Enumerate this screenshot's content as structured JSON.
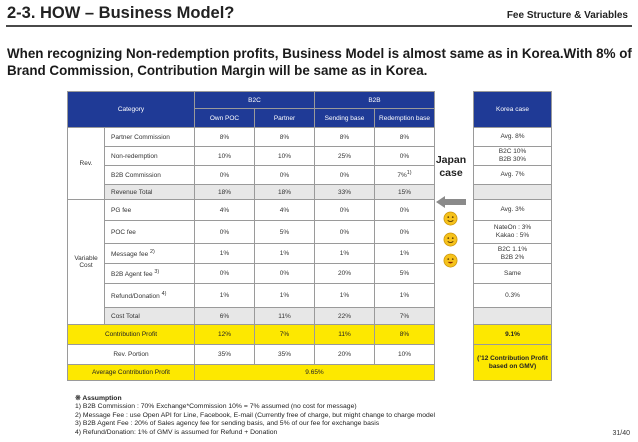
{
  "header": {
    "title": "2-3. HOW – Business Model?",
    "right_label": "Fee Structure & Variables"
  },
  "subtitle": "When recognizing Non-redemption profits, Business Model is almost same as in Korea.With 8% of Brand Commission, Contribution Margin will be same as in Korea.",
  "table": {
    "category_header": "Category",
    "group_headers": {
      "b2c": "B2C",
      "b2b": "B2B"
    },
    "col_headers": [
      "Own POC",
      "Partner",
      "Sending base",
      "Redemption base"
    ],
    "group_rev": "Rev.",
    "group_var": "Variable Cost",
    "rows": [
      {
        "label": "Partner Commission",
        "values": [
          "8%",
          "8%",
          "8%",
          "8%"
        ]
      },
      {
        "label": "Non-redemption",
        "values": [
          "10%",
          "10%",
          "25%",
          "0%"
        ]
      },
      {
        "label": "B2B Commission",
        "values": [
          "0%",
          "0%",
          "0%",
          "7%"
        ],
        "sup_last": "1)"
      },
      {
        "label": "Revenue Total",
        "values": [
          "18%",
          "18%",
          "33%",
          "15%"
        ]
      },
      {
        "label": "PG fee",
        "values": [
          "4%",
          "4%",
          "0%",
          "0%"
        ]
      },
      {
        "label": "POC fee",
        "values": [
          "0%",
          "5%",
          "0%",
          "0%"
        ]
      },
      {
        "label": "Message fee",
        "sup": "2)",
        "values": [
          "1%",
          "1%",
          "1%",
          "1%"
        ]
      },
      {
        "label": "B2B Agent fee",
        "sup": "3)",
        "values": [
          "0%",
          "0%",
          "20%",
          "5%"
        ]
      },
      {
        "label": "Refund/Donation",
        "sup": "4)",
        "values": [
          "1%",
          "1%",
          "1%",
          "1%"
        ]
      },
      {
        "label": "Cost Total",
        "values": [
          "6%",
          "11%",
          "22%",
          "7%"
        ]
      },
      {
        "label": "Contribution Profit",
        "values": [
          "12%",
          "7%",
          "11%",
          "8%"
        ]
      },
      {
        "label": "Rev. Portion",
        "values": [
          "35%",
          "35%",
          "20%",
          "10%"
        ]
      }
    ],
    "average_label": "Average Contribution Profit",
    "average_value": "9.65%"
  },
  "japan_case": "Japan case",
  "korea": {
    "header": "Korea case",
    "cells": [
      "Avg. 8%",
      "B2C 10%\nB2B 30%",
      "Avg. 7%",
      "",
      "Avg. 3%",
      "NateOn : 3%\nKakao : 5%",
      "B2C 1.1%\nB2B 2%",
      "Same",
      "0.3%",
      "",
      "9.1%",
      "(’12 Contribution Profit based on GMV)"
    ]
  },
  "notes": {
    "title": "※ Assumption",
    "lines": [
      "1) B2B Commission : 70% Exchange*Commission 10% = 7% assumed (no cost for message)",
      "2) Message Fee : use Open API for Line, Facebook, E-mail (Currently free of charge, but might change to charge model",
      "3) B2B Agent Fee : 20% of Sales agency fee for sending basis, and 5% of our fee for exchange basis",
      "4) Refund/Donation: 1% of GMV is assumed for Refund + Donation"
    ]
  },
  "page_number": "31/40",
  "colors": {
    "header_blue": "#1f3a96",
    "highlight_yellow": "#fde800",
    "shade_grey": "#e7e7e7"
  },
  "icons": [
    "left-arrow-icon",
    "smiley-face-icon"
  ]
}
